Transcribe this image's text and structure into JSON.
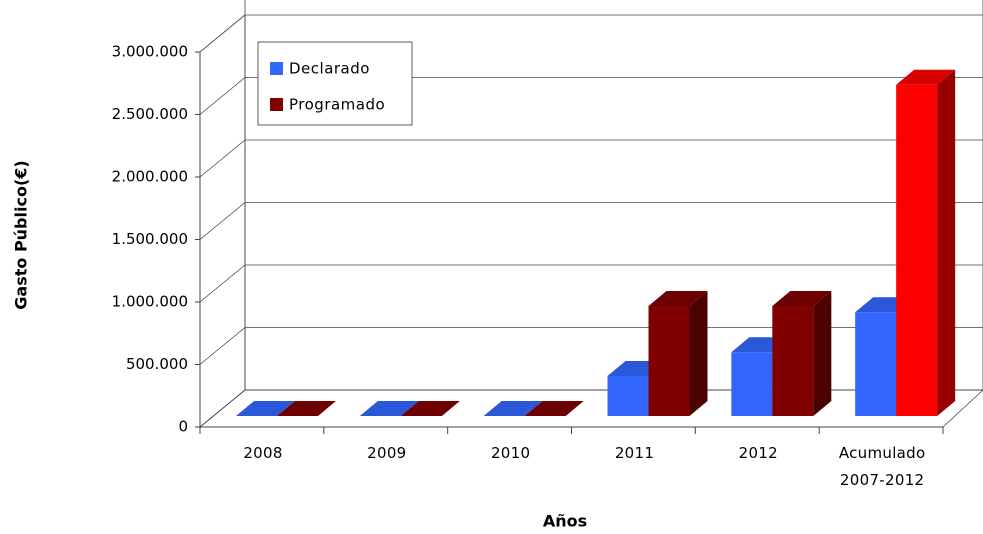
{
  "chart_data": {
    "type": "bar3d",
    "x_label": "Años",
    "y_label": "Gasto Público(€)",
    "categories": [
      "2008",
      "2009",
      "2010",
      "2011",
      "2012",
      "Acumulado\n2007-2012"
    ],
    "series": [
      {
        "name": "Declarado",
        "color": "#3366ff",
        "values": [
          0,
          0,
          0,
          320000,
          510000,
          830000
        ]
      },
      {
        "name": "Programado",
        "color": "#800000",
        "point_colors": [
          "#800000",
          "#800000",
          "#800000",
          "#800000",
          "#800000",
          "#ff0000"
        ],
        "values": [
          0,
          0,
          0,
          880000,
          880000,
          2650000
        ]
      }
    ],
    "ylim": [
      0,
      3000000
    ],
    "yticks": [
      0,
      {
        "value": 500000,
        "label": "500.000"
      },
      {
        "value": 1000000,
        "label": "1.000.000"
      },
      {
        "value": 1500000,
        "label": "1.500.000"
      },
      {
        "value": 2000000,
        "label": "2.000.000"
      },
      {
        "value": 2500000,
        "label": "2.500.000"
      },
      {
        "value": 3000000,
        "label": "3.000.000"
      }
    ],
    "grid": true,
    "legend": "top-left"
  }
}
